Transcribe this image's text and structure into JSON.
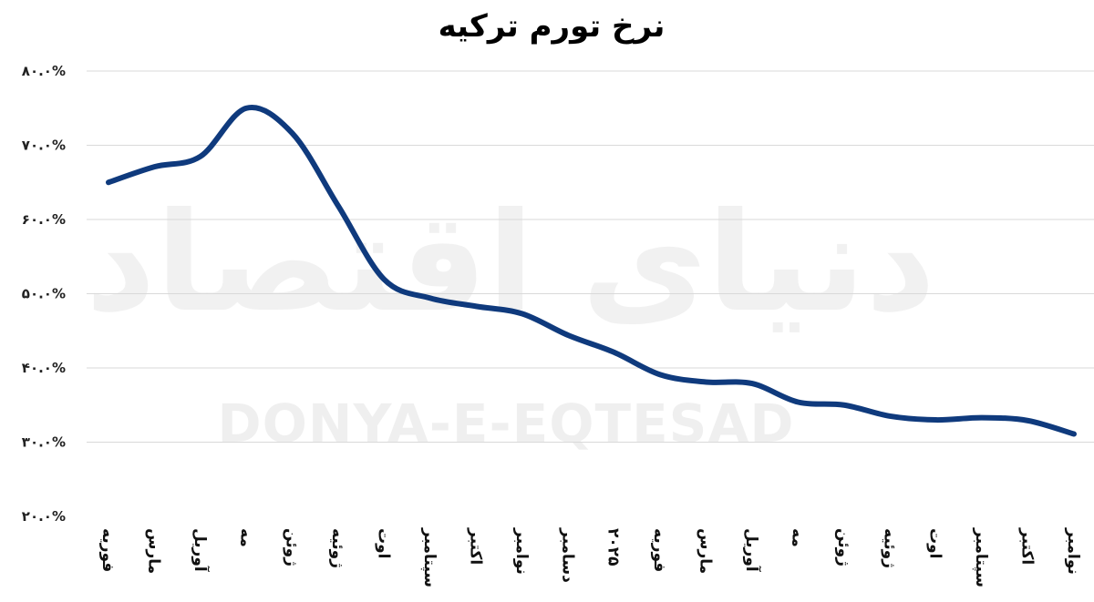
{
  "chart_data": {
    "type": "line",
    "title": "نرخ تورم ترکیه",
    "categories": [
      "فوریه",
      "مارس",
      "آوریل",
      "مه",
      "ژوئن",
      "ژوئیه",
      "اوت",
      "سپتامبر",
      "اکتبر",
      "نوامبر",
      "دسامبر",
      "۲۰۲۵",
      "فوریه",
      "مارس",
      "آوریل",
      "مه",
      "ژوئن",
      "ژوئیه",
      "اوت",
      "سپتامبر",
      "اکتبر",
      "نوامبر"
    ],
    "series": [
      {
        "values": [
          65.0,
          67.1,
          68.5,
          75.0,
          71.6,
          61.8,
          51.9,
          49.4,
          48.3,
          47.3,
          44.4,
          42.1,
          39.1,
          38.1,
          37.9,
          35.4,
          35.0,
          33.5,
          33.0,
          33.3,
          32.9,
          31.1
        ]
      }
    ],
    "ylim": [
      20,
      80
    ],
    "yticks": [
      {
        "value": 80,
        "label": "۸۰.۰%"
      },
      {
        "value": 70,
        "label": "۷۰.۰%"
      },
      {
        "value": 60,
        "label": "۶۰.۰%"
      },
      {
        "value": 50,
        "label": "۵۰.۰%"
      },
      {
        "value": 40,
        "label": "۴۰.۰%"
      },
      {
        "value": 30,
        "label": "۳۰.۰%"
      },
      {
        "value": 20,
        "label": "۲۰.۰%"
      }
    ],
    "grid": true,
    "line_color": "#0f3a7d"
  },
  "watermark": {
    "logo_text": "دنیای اقتصاد",
    "latin_text": "DONYA-E-EQTESAD"
  }
}
